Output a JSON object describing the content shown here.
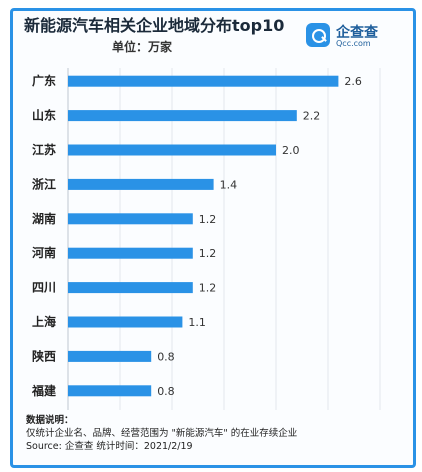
{
  "chart_data": {
    "type": "bar",
    "orientation": "horizontal",
    "title": "新能源汽车相关企业地域分布top10",
    "unit": "单位：万家",
    "categories": [
      "广东",
      "山东",
      "江苏",
      "浙江",
      "湖南",
      "河南",
      "四川",
      "上海",
      "陕西",
      "福建"
    ],
    "values": [
      2.6,
      2.2,
      2.0,
      1.4,
      1.2,
      1.2,
      1.2,
      1.1,
      0.8,
      0.8
    ],
    "value_labels": [
      "2.6",
      "2.2",
      "2.0",
      "1.4",
      "1.2",
      "1.2",
      "1.2",
      "1.1",
      "0.8",
      "0.8"
    ],
    "xlim": [
      0,
      3
    ],
    "grid": true,
    "colors": {
      "bar": "#2a92e6",
      "frame": "#2a92e6",
      "label": "#222222"
    }
  },
  "logo": {
    "name": "企查查",
    "sub": "Qcc.com",
    "icon": "magnifier-icon"
  },
  "notes": {
    "heading": "数据说明：",
    "line1": "仅统计企业名、品牌、经营范围为 \"新能源汽车\" 的在业存续企业",
    "source": "Source:  企查查    统计时间：2021/2/19"
  }
}
